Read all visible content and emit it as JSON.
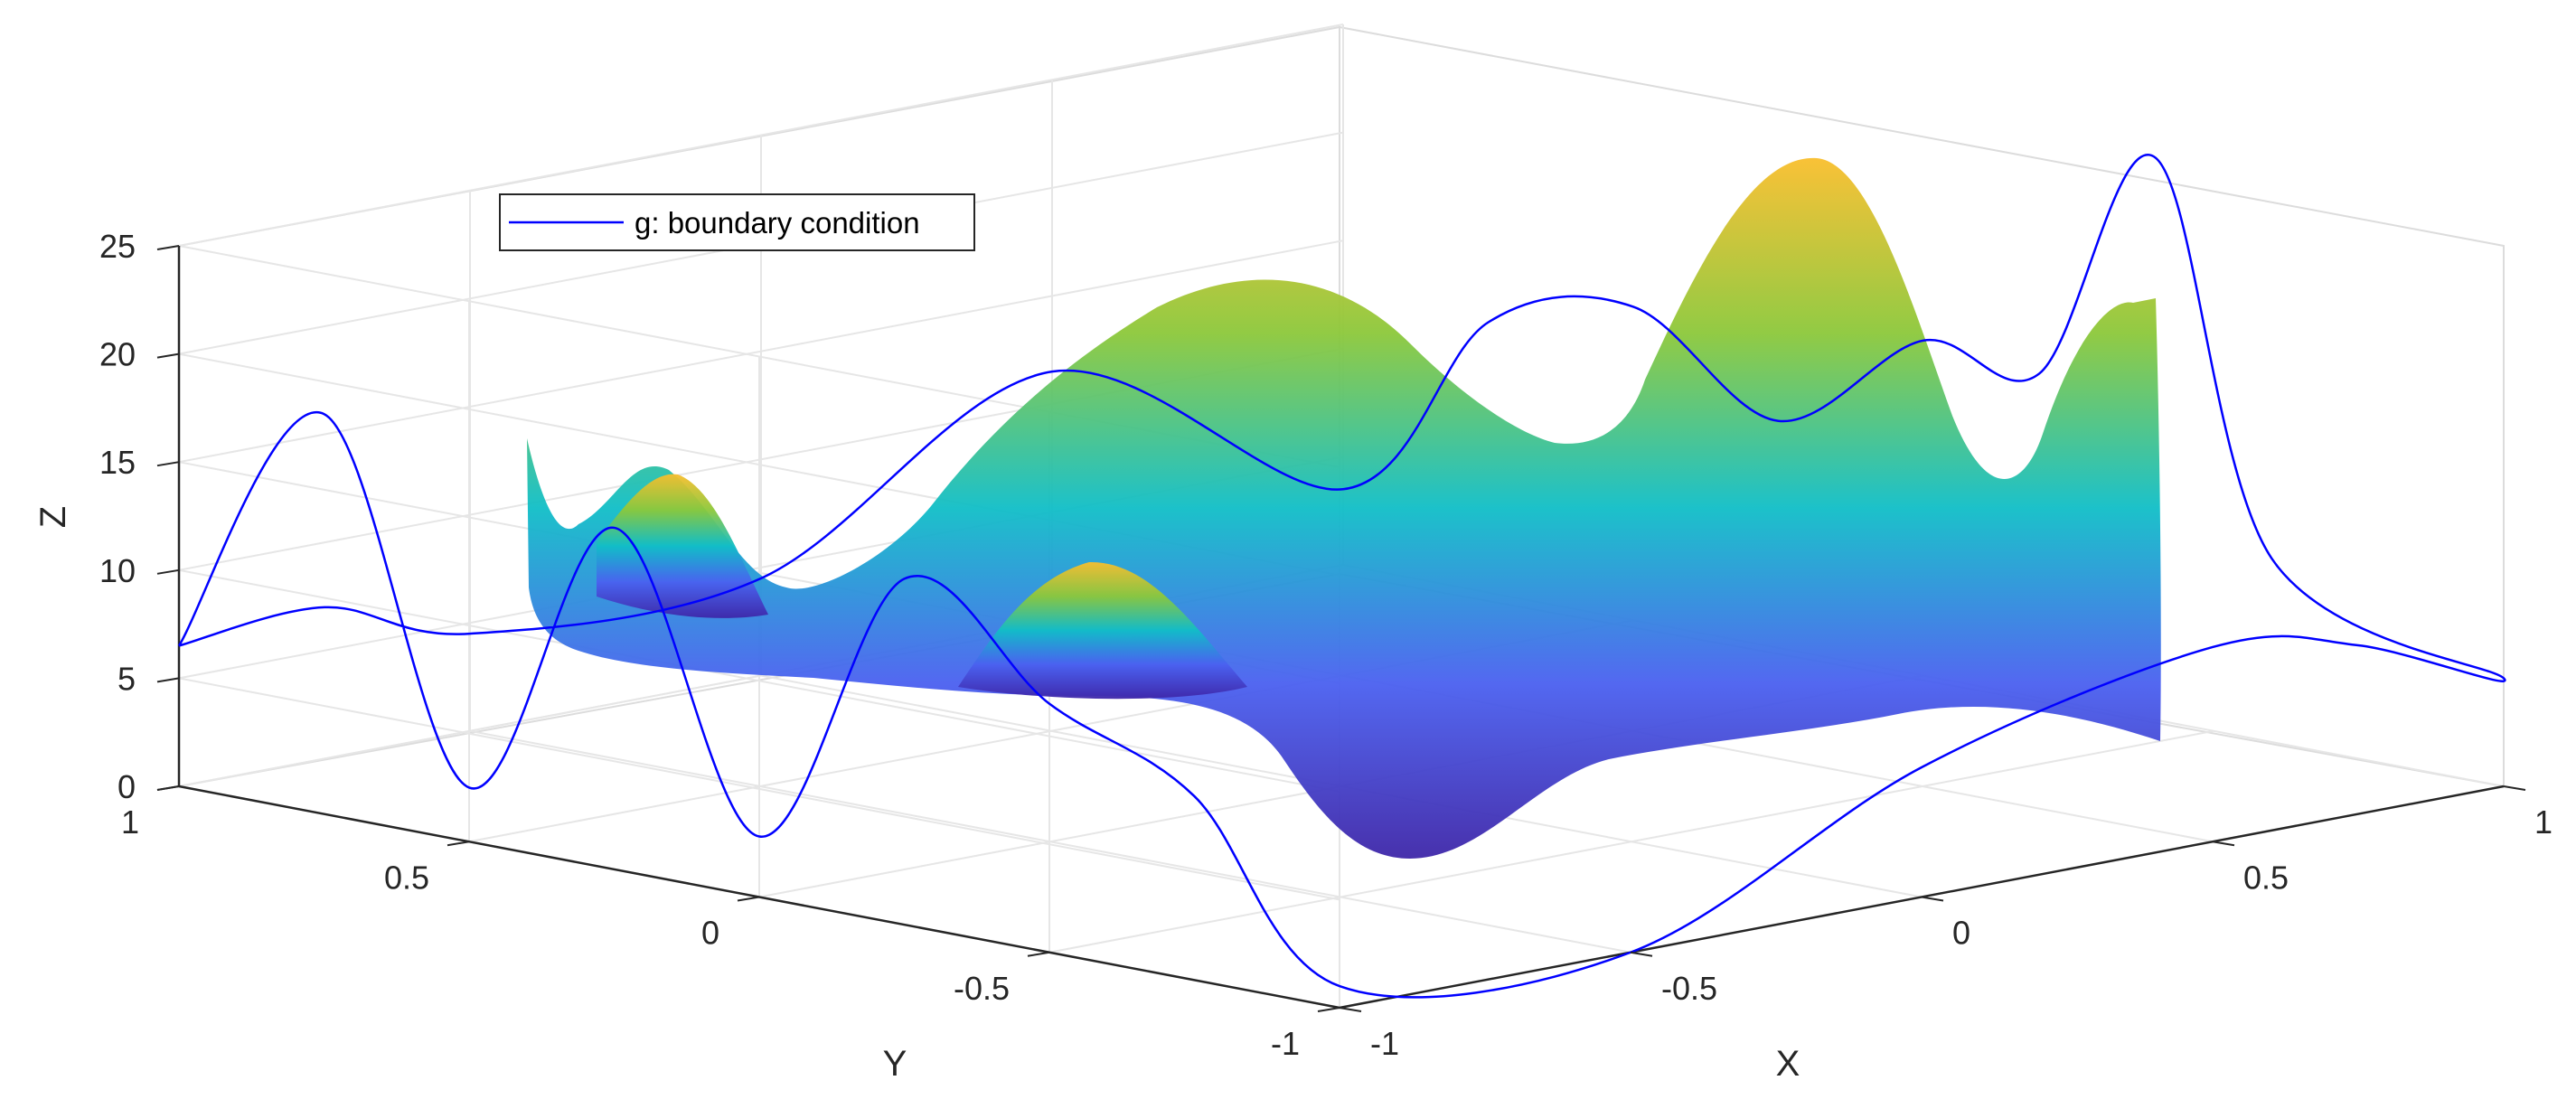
{
  "chart_data": {
    "type": "surface",
    "title": "",
    "xlabel": "X",
    "ylabel": "Y",
    "zlabel": "Z",
    "xlim": [
      -1,
      1
    ],
    "ylim": [
      -1,
      1
    ],
    "zlim": [
      0,
      25
    ],
    "x_ticks": [
      "-1",
      "-0.5",
      "0",
      "0.5",
      "1"
    ],
    "y_ticks": [
      "-1",
      "-0.5",
      "0",
      "0.5",
      "1"
    ],
    "z_ticks": [
      "0",
      "5",
      "10",
      "15",
      "20",
      "25"
    ],
    "grid": true,
    "colormap": "parula",
    "colors": {
      "surface_low": "#3e26a8",
      "surface_mid": "#10bec7",
      "surface_high": "#f9be2c",
      "boundary": "#0000ff"
    },
    "legend": {
      "placement": "top-left",
      "entries": [
        {
          "name": "g: boundary condition",
          "color": "#0000ff",
          "style": "line"
        }
      ]
    },
    "series": [
      {
        "name": "g: boundary condition",
        "kind": "line3d",
        "points": [
          {
            "x": -1,
            "y": 1,
            "z": 6.5
          },
          {
            "x": -1,
            "y": 0.75,
            "z": 18.5
          },
          {
            "x": -1,
            "y": 0.5,
            "z": 2.5
          },
          {
            "x": -1,
            "y": 0.25,
            "z": 15.8
          },
          {
            "x": -1,
            "y": 0,
            "z": 2.8
          },
          {
            "x": -1,
            "y": -0.25,
            "z": 16.0
          },
          {
            "x": -1,
            "y": -0.5,
            "z": 11.5
          },
          {
            "x": -1,
            "y": -0.75,
            "z": 8.5
          },
          {
            "x": -1,
            "y": -1,
            "z": 1.0
          },
          {
            "x": -0.5,
            "y": -1,
            "z": 0.0
          },
          {
            "x": 0,
            "y": -1,
            "z": 6.0
          },
          {
            "x": 0.5,
            "y": -1,
            "z": 9.0
          },
          {
            "x": 0.75,
            "y": -1,
            "z": 7.8
          },
          {
            "x": 1,
            "y": -1,
            "z": 5.0
          },
          {
            "x": 1,
            "y": -0.6,
            "z": 8.5
          },
          {
            "x": 1,
            "y": -0.4,
            "z": 26.0
          },
          {
            "x": 1,
            "y": -0.2,
            "z": 15.0
          },
          {
            "x": 1,
            "y": 0,
            "z": 15.5
          },
          {
            "x": 1,
            "y": 0.25,
            "z": 10.5
          },
          {
            "x": 1,
            "y": 0.5,
            "z": 14.5
          },
          {
            "x": 1,
            "y": 0.75,
            "z": 12.5
          },
          {
            "x": 1,
            "y": 1,
            "z": 3.5
          },
          {
            "x": 0.5,
            "y": 1,
            "z": 11.5
          },
          {
            "x": 0,
            "y": 1,
            "z": 4.5
          },
          {
            "x": -0.5,
            "y": 1,
            "z": 4.5
          },
          {
            "x": -0.75,
            "y": 1,
            "z": 7.0
          },
          {
            "x": -1,
            "y": 1,
            "z": 6.5
          }
        ]
      }
    ]
  }
}
